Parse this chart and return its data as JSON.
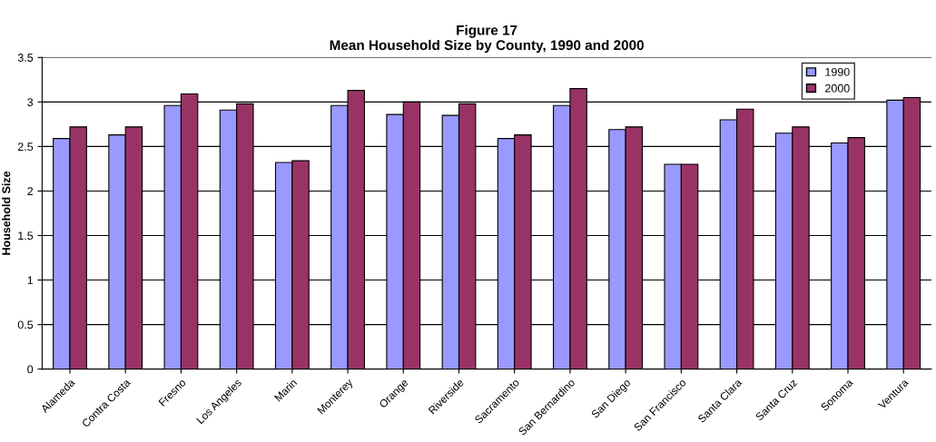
{
  "chart_data": {
    "type": "bar",
    "title": "Figure 17\nMean Household Size by County, 1990 and 2000",
    "ylabel": "Household Size",
    "categories": [
      "Alameda",
      "Contra Costa",
      "Fresno",
      "Los Angeles",
      "Marin",
      "Monterey",
      "Orange",
      "Riverside",
      "Sacramento",
      "San Bernardino",
      "San Diego",
      "San Francisco",
      "Santa Clara",
      "Santa Cruz",
      "Sonoma",
      "Ventura"
    ],
    "series": [
      {
        "name": "1990",
        "color": "#9999ff",
        "values": [
          2.59,
          2.63,
          2.96,
          2.91,
          2.32,
          2.96,
          2.86,
          2.85,
          2.59,
          2.96,
          2.69,
          2.3,
          2.8,
          2.65,
          2.54,
          3.02
        ]
      },
      {
        "name": "2000",
        "color": "#993366",
        "values": [
          2.72,
          2.72,
          3.09,
          2.98,
          2.34,
          3.13,
          3.0,
          2.98,
          2.63,
          3.15,
          2.72,
          2.3,
          2.92,
          2.72,
          2.6,
          3.05
        ]
      }
    ],
    "ylim": [
      0,
      3.5
    ],
    "yticks": [
      0,
      0.5,
      1,
      1.5,
      2,
      2.5,
      3,
      3.5
    ],
    "grid": "y",
    "legend": "top right"
  }
}
